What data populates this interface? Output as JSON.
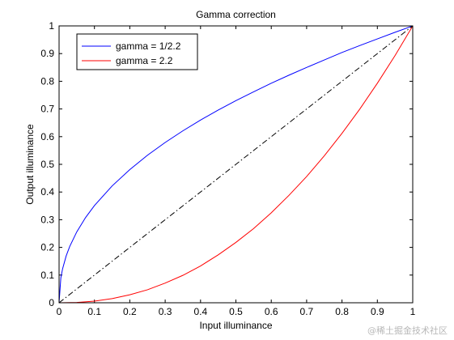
{
  "chart_data": {
    "type": "line",
    "title": "Gamma correction",
    "xlabel": "Input illuminance",
    "ylabel": "Output illuminance",
    "xlim": [
      0,
      1
    ],
    "ylim": [
      0,
      1
    ],
    "xticks": [
      0,
      0.1,
      0.2,
      0.3,
      0.4,
      0.5,
      0.6,
      0.7,
      0.8,
      0.9,
      1
    ],
    "yticks": [
      0,
      0.1,
      0.2,
      0.3,
      0.4,
      0.5,
      0.6,
      0.7,
      0.8,
      0.9,
      1
    ],
    "xtick_labels": [
      "0",
      "0.1",
      "0.2",
      "0.3",
      "0.4",
      "0.5",
      "0.6",
      "0.7",
      "0.8",
      "0.9",
      "1"
    ],
    "ytick_labels": [
      "0",
      "0.1",
      "0.2",
      "0.3",
      "0.4",
      "0.5",
      "0.6",
      "0.7",
      "0.8",
      "0.9",
      "1"
    ],
    "grid": false,
    "legend_position": "top-left",
    "series": [
      {
        "name": "gamma = 1/2.2",
        "color": "#0000ff",
        "style": "solid",
        "x": [
          0,
          0.005,
          0.01,
          0.02,
          0.03,
          0.05,
          0.075,
          0.1,
          0.15,
          0.2,
          0.25,
          0.3,
          0.35,
          0.4,
          0.45,
          0.5,
          0.55,
          0.6,
          0.65,
          0.7,
          0.75,
          0.8,
          0.85,
          0.9,
          0.95,
          1
        ],
        "y": [
          0,
          0.09,
          0.123,
          0.169,
          0.203,
          0.256,
          0.308,
          0.351,
          0.422,
          0.481,
          0.533,
          0.579,
          0.621,
          0.66,
          0.696,
          0.73,
          0.762,
          0.793,
          0.822,
          0.85,
          0.877,
          0.904,
          0.929,
          0.953,
          0.977,
          1
        ]
      },
      {
        "name": "gamma = 2.2",
        "color": "#ff0000",
        "style": "solid",
        "x": [
          0,
          0.05,
          0.1,
          0.15,
          0.2,
          0.25,
          0.3,
          0.35,
          0.4,
          0.45,
          0.5,
          0.55,
          0.6,
          0.65,
          0.7,
          0.75,
          0.8,
          0.85,
          0.9,
          0.95,
          1
        ],
        "y": [
          0,
          0.001,
          0.006,
          0.015,
          0.029,
          0.047,
          0.071,
          0.099,
          0.133,
          0.173,
          0.218,
          0.268,
          0.325,
          0.388,
          0.456,
          0.531,
          0.612,
          0.699,
          0.793,
          0.893,
          1
        ]
      },
      {
        "name": "",
        "color": "#000000",
        "style": "dash-dot",
        "x": [
          0,
          1
        ],
        "y": [
          0,
          1
        ]
      }
    ]
  },
  "watermark": "@稀土掘金技术社区"
}
